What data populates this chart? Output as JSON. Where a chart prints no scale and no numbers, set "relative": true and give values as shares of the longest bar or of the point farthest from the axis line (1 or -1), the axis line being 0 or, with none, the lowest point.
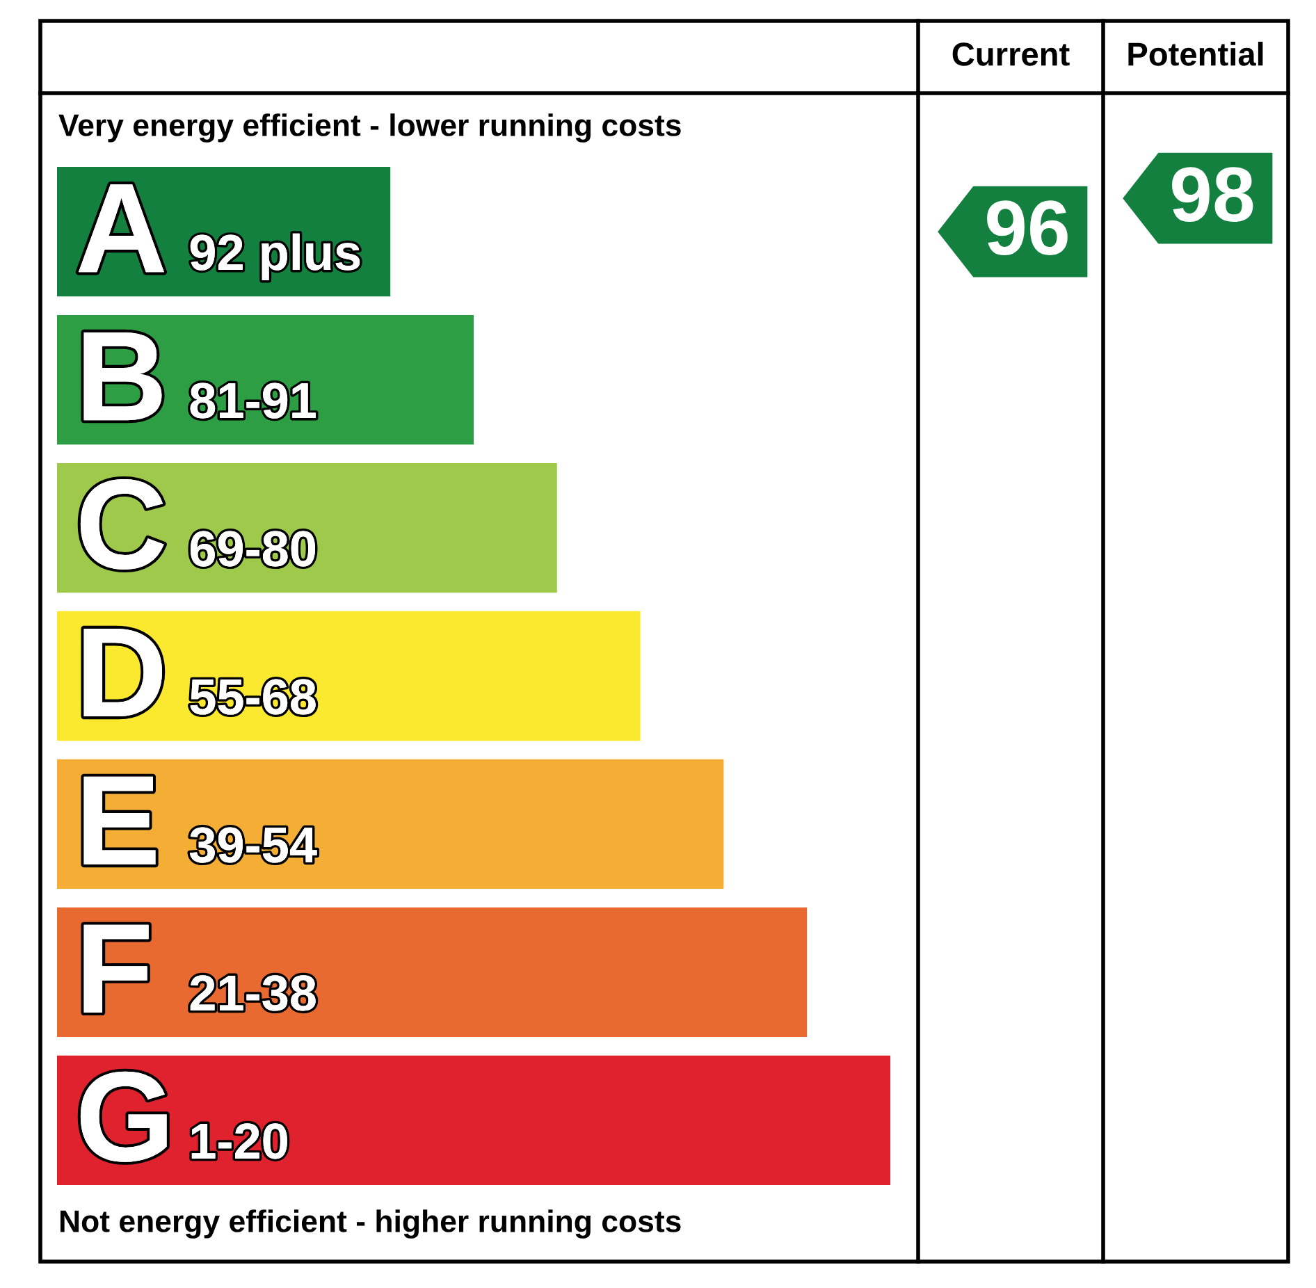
{
  "chart_data": {
    "type": "bar",
    "orientation": "horizontal",
    "relative": true,
    "categories": [
      "A",
      "B",
      "C",
      "D",
      "E",
      "F",
      "G"
    ],
    "values": [
      0.4,
      0.5,
      0.6,
      0.7,
      0.8,
      0.9,
      1.0
    ],
    "colors": [
      "#13803f",
      "#2e9e44",
      "#9ec94a",
      "#fbe92f",
      "#f4ae36",
      "#e96a31",
      "#e0222e"
    ],
    "annotations": [
      "Very energy efficient - lower running costs",
      "Not energy efficient - higher running costs",
      "Current",
      "Potential",
      "96",
      "98",
      "92 plus",
      "81-91",
      "69-80",
      "55-68",
      "39-54",
      "21-38",
      "1-20"
    ]
  }
}
